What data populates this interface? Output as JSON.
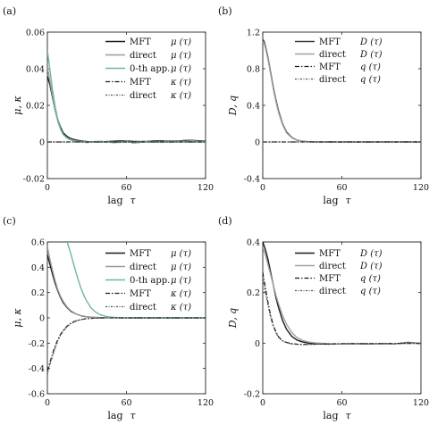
{
  "chart_data": [
    {
      "type": "line",
      "panel_label": "(a)",
      "xlabel_prefix": "lag",
      "xlabel_symbol": "τ",
      "ylabel": "μ, κ",
      "xlim": [
        0,
        120
      ],
      "ylim": [
        -0.02,
        0.06
      ],
      "xticks": [
        "0",
        "60",
        "120"
      ],
      "xtick_values": [
        0,
        60,
        120
      ],
      "yticks": [
        "-0.02",
        "0",
        "0.02",
        "0.04",
        "0.06"
      ],
      "ytick_values": [
        -0.02,
        0,
        0.02,
        0.04,
        0.06
      ],
      "grid": false,
      "legend_position": "top-right",
      "series": [
        {
          "label": "MFT",
          "quantity": "μ (τ)",
          "color": "#1a1a1a",
          "dash": "",
          "x": [
            0,
            2,
            4,
            6,
            8,
            10,
            12,
            15,
            18,
            22,
            26,
            30,
            35,
            40,
            45,
            50,
            55,
            60,
            65,
            70,
            75,
            80,
            85,
            90,
            95,
            100,
            105,
            110,
            115,
            120
          ],
          "y": [
            0.036,
            0.031,
            0.024,
            0.017,
            0.012,
            0.008,
            0.005,
            0.003,
            0.0018,
            0.001,
            0.0005,
            0.0002,
            0.0001,
            0.0,
            0.0002,
            0.0004,
            0.0006,
            0.0005,
            0.0003,
            0.0002,
            0.0003,
            0.0005,
            0.0006,
            0.0005,
            0.0004,
            0.0006,
            0.0008,
            0.0009,
            0.0006,
            0.0004
          ]
        },
        {
          "label": "direct",
          "quantity": "μ (τ)",
          "color": "#9a9a9a",
          "dash": "",
          "x": [
            0,
            2,
            4,
            6,
            8,
            10,
            12,
            15,
            18,
            22,
            26,
            30,
            35,
            40,
            45,
            50,
            55,
            60,
            65,
            70,
            75,
            80,
            85,
            90,
            95,
            100,
            105,
            110,
            115,
            120
          ],
          "y": [
            0.041,
            0.033,
            0.025,
            0.017,
            0.011,
            0.007,
            0.004,
            0.0022,
            0.0012,
            0.0006,
            0.0001,
            -0.0003,
            0.0002,
            0.0004,
            0.0001,
            -0.0004,
            -0.0002,
            0.0004,
            -0.0006,
            -0.0003,
            0.0003,
            0.0002,
            -0.0002,
            0.0003,
            0.0001,
            0.0004,
            0.0003,
            0.0007,
            0.0002,
            0.0001
          ]
        },
        {
          "label": "0-th app.",
          "quantity": "μ (τ)",
          "color": "#6fb5a3",
          "dash": "",
          "x": [
            0,
            2,
            4,
            6,
            8,
            10,
            12,
            15,
            18,
            22,
            26,
            30,
            40,
            60,
            90,
            120
          ],
          "y": [
            0.05,
            0.039,
            0.028,
            0.019,
            0.012,
            0.007,
            0.0042,
            0.002,
            0.001,
            0.0004,
            0.0002,
            0.0001,
            0.0,
            0.0,
            0.0,
            0.0
          ]
        },
        {
          "label": "MFT",
          "quantity": "κ (τ)",
          "color": "#1a1a1a",
          "dash": "5,2,1.5,2",
          "x": [
            0,
            10,
            20,
            40,
            60,
            80,
            100,
            120
          ],
          "y": [
            0.0,
            0.0,
            0.0,
            0.0,
            0.0,
            0.0,
            0.0,
            0.0
          ]
        },
        {
          "label": "direct",
          "quantity": "κ (τ)",
          "color": "#555555",
          "dash": "2,1.5,1,1.5",
          "x": [
            0,
            10,
            20,
            40,
            60,
            80,
            100,
            120
          ],
          "y": [
            0.0,
            0.0,
            0.0,
            0.0,
            0.0,
            0.0,
            0.0,
            0.0
          ]
        }
      ]
    },
    {
      "type": "line",
      "panel_label": "(b)",
      "xlabel_prefix": "lag",
      "xlabel_symbol": "τ",
      "ylabel": "D, q",
      "xlim": [
        0,
        120
      ],
      "ylim": [
        -0.4,
        1.2
      ],
      "xticks": [
        "0",
        "60",
        "120"
      ],
      "xtick_values": [
        0,
        60,
        120
      ],
      "yticks": [
        "-0.4",
        "0",
        "0.4",
        "0.8",
        "1.2"
      ],
      "ytick_values": [
        -0.4,
        0,
        0.4,
        0.8,
        1.2
      ],
      "grid": false,
      "legend_position": "top-right",
      "series": [
        {
          "label": "MFT",
          "quantity": "D (τ)",
          "color": "#3a3a3a",
          "dash": "",
          "x": [
            0,
            1,
            2,
            4,
            6,
            8,
            10,
            12,
            15,
            18,
            22,
            26,
            30,
            35,
            40,
            50,
            60,
            80,
            100,
            120
          ],
          "y": [
            1.12,
            1.1,
            1.05,
            0.92,
            0.76,
            0.6,
            0.46,
            0.34,
            0.2,
            0.11,
            0.05,
            0.02,
            0.008,
            0.003,
            0.001,
            0.0,
            0.0,
            0.0,
            0.0,
            0.0
          ]
        },
        {
          "label": "direct",
          "quantity": "D (τ)",
          "color": "#a0a0a0",
          "dash": "",
          "x": [
            0,
            1,
            2,
            4,
            6,
            8,
            10,
            12,
            15,
            18,
            22,
            26,
            30,
            35,
            40,
            50,
            60,
            80,
            100,
            120
          ],
          "y": [
            1.1,
            1.08,
            1.03,
            0.9,
            0.74,
            0.58,
            0.44,
            0.32,
            0.19,
            0.1,
            0.045,
            0.018,
            0.007,
            0.002,
            0.0,
            0.0,
            0.0,
            0.0,
            0.0,
            0.0
          ]
        },
        {
          "label": "MFT",
          "quantity": "q (τ)",
          "color": "#1a1a1a",
          "dash": "5,2,1.5,2",
          "x": [
            0,
            10,
            20,
            40,
            60,
            80,
            100,
            120
          ],
          "y": [
            0.0,
            0.0,
            0.0,
            0.0,
            0.0,
            0.0,
            0.0,
            0.0
          ]
        },
        {
          "label": "direct",
          "quantity": "q (τ)",
          "color": "#555555",
          "dash": "2,1.5,1,1.5",
          "x": [
            0,
            10,
            20,
            40,
            60,
            80,
            100,
            120
          ],
          "y": [
            0.0,
            0.0,
            0.0,
            0.0,
            0.0,
            0.0,
            0.0,
            0.0
          ]
        }
      ]
    },
    {
      "type": "line",
      "panel_label": "(c)",
      "xlabel_prefix": "lag",
      "xlabel_symbol": "τ",
      "ylabel": "μ, κ",
      "xlim": [
        0,
        120
      ],
      "ylim": [
        -0.6,
        0.6
      ],
      "xticks": [
        "0",
        "60",
        "120"
      ],
      "xtick_values": [
        0,
        60,
        120
      ],
      "yticks": [
        "-0.6",
        "-0.4",
        "-0.2",
        "0",
        "0.2",
        "0.4",
        "0.6"
      ],
      "ytick_values": [
        -0.6,
        -0.4,
        -0.2,
        0,
        0.2,
        0.4,
        0.6
      ],
      "grid": false,
      "legend_position": "top-right",
      "series": [
        {
          "label": "MFT",
          "quantity": "μ (τ)",
          "color": "#1a1a1a",
          "dash": "",
          "x": [
            0,
            2,
            4,
            6,
            8,
            10,
            12,
            15,
            18,
            22,
            26,
            30,
            35,
            40,
            50,
            60,
            80,
            100,
            120
          ],
          "y": [
            0.5,
            0.42,
            0.34,
            0.27,
            0.21,
            0.16,
            0.12,
            0.08,
            0.05,
            0.03,
            0.015,
            0.008,
            0.004,
            0.002,
            0.001,
            0.0,
            0.0,
            0.0,
            0.0
          ]
        },
        {
          "label": "direct",
          "quantity": "μ (τ)",
          "color": "#9a9a9a",
          "dash": "",
          "x": [
            0,
            2,
            4,
            6,
            8,
            10,
            12,
            15,
            18,
            22,
            26,
            30,
            35,
            40,
            50,
            60,
            80,
            100,
            120
          ],
          "y": [
            0.56,
            0.46,
            0.37,
            0.29,
            0.22,
            0.17,
            0.13,
            0.085,
            0.055,
            0.03,
            0.016,
            0.008,
            0.004,
            0.002,
            0.001,
            0.0,
            0.0,
            0.0,
            0.0
          ]
        },
        {
          "label": "0-th app.",
          "quantity": "μ (τ)",
          "color": "#6fb5a3",
          "dash": "",
          "x": [
            15,
            18,
            20,
            22,
            24,
            26,
            28,
            30,
            33,
            36,
            40,
            45,
            50,
            60,
            80,
            120
          ],
          "y": [
            0.6,
            0.5,
            0.42,
            0.35,
            0.28,
            0.22,
            0.17,
            0.13,
            0.08,
            0.05,
            0.025,
            0.01,
            0.004,
            0.001,
            0.0,
            0.0
          ]
        },
        {
          "label": "MFT",
          "quantity": "κ (τ)",
          "color": "#1a1a1a",
          "dash": "5,2,1.5,2",
          "x": [
            0,
            2,
            4,
            6,
            8,
            10,
            12,
            15,
            18,
            22,
            26,
            30,
            35,
            40,
            50,
            60,
            80,
            100,
            120
          ],
          "y": [
            -0.42,
            -0.35,
            -0.28,
            -0.22,
            -0.17,
            -0.13,
            -0.1,
            -0.065,
            -0.04,
            -0.022,
            -0.012,
            -0.006,
            -0.003,
            -0.001,
            0.0,
            0.0,
            0.0,
            0.0,
            0.0
          ]
        },
        {
          "label": "direct",
          "quantity": "κ (τ)",
          "color": "#555555",
          "dash": "2,1.5,1,1.5",
          "x": [
            0,
            2,
            4,
            6,
            8,
            10,
            12,
            15,
            18,
            22,
            26,
            30,
            35,
            40,
            50,
            60,
            80,
            100,
            120
          ],
          "y": [
            -0.45,
            -0.37,
            -0.3,
            -0.24,
            -0.18,
            -0.14,
            -0.105,
            -0.07,
            -0.045,
            -0.025,
            -0.013,
            -0.007,
            -0.003,
            -0.001,
            0.0,
            0.0,
            0.0,
            0.0,
            0.0
          ]
        }
      ]
    },
    {
      "type": "line",
      "panel_label": "(d)",
      "xlabel_prefix": "lag",
      "xlabel_symbol": "τ",
      "ylabel": "D, q",
      "xlim": [
        0,
        120
      ],
      "ylim": [
        -0.2,
        0.4
      ],
      "xticks": [
        "0",
        "60",
        "120"
      ],
      "xtick_values": [
        0,
        60,
        120
      ],
      "yticks": [
        "-0.2",
        "0",
        "0.2",
        "0.4"
      ],
      "ytick_values": [
        -0.2,
        0,
        0.2,
        0.4
      ],
      "grid": false,
      "legend_position": "top-right",
      "series": [
        {
          "label": "MFT",
          "quantity": "D (τ)",
          "color": "#1a1a1a",
          "dash": "",
          "x": [
            0,
            2,
            4,
            6,
            8,
            10,
            12,
            15,
            18,
            22,
            26,
            30,
            35,
            40,
            50,
            60,
            70,
            80,
            90,
            100,
            110,
            120
          ],
          "y": [
            0.4,
            0.37,
            0.33,
            0.28,
            0.23,
            0.18,
            0.14,
            0.09,
            0.055,
            0.027,
            0.012,
            0.005,
            0.0,
            -0.003,
            -0.004,
            -0.003,
            -0.002,
            -0.003,
            -0.002,
            -0.003,
            0.003,
            -0.001
          ]
        },
        {
          "label": "direct",
          "quantity": "D (τ)",
          "color": "#a0a0a0",
          "dash": "",
          "x": [
            0,
            2,
            4,
            6,
            8,
            10,
            12,
            15,
            18,
            22,
            26,
            30,
            35,
            40,
            50,
            60,
            70,
            80,
            90,
            100,
            110,
            120
          ],
          "y": [
            0.38,
            0.35,
            0.31,
            0.27,
            0.23,
            0.19,
            0.155,
            0.11,
            0.075,
            0.042,
            0.022,
            0.011,
            0.004,
            0.001,
            -0.002,
            -0.003,
            -0.002,
            -0.002,
            -0.002,
            -0.002,
            0.001,
            -0.001
          ]
        },
        {
          "label": "MFT",
          "quantity": "q (τ)",
          "color": "#1a1a1a",
          "dash": "5,2,1.5,2",
          "x": [
            0,
            2,
            4,
            6,
            8,
            10,
            12,
            15,
            18,
            22,
            26,
            30,
            35,
            40,
            50,
            60,
            80,
            100,
            120
          ],
          "y": [
            0.28,
            0.22,
            0.16,
            0.11,
            0.07,
            0.045,
            0.025,
            0.01,
            0.003,
            -0.002,
            -0.004,
            -0.005,
            -0.005,
            -0.004,
            -0.003,
            -0.002,
            -0.002,
            -0.001,
            -0.001
          ]
        },
        {
          "label": "direct",
          "quantity": "q (τ)",
          "color": "#555555",
          "dash": "2,1.5,1,1.5",
          "x": [
            0,
            2,
            4,
            6,
            8,
            10,
            12,
            15,
            18,
            22,
            26,
            30,
            35,
            40,
            50,
            60,
            80,
            100,
            120
          ],
          "y": [
            0.26,
            0.2,
            0.15,
            0.1,
            0.065,
            0.04,
            0.022,
            0.008,
            0.002,
            -0.003,
            -0.005,
            -0.006,
            -0.005,
            -0.004,
            -0.003,
            -0.002,
            -0.002,
            -0.001,
            -0.001
          ]
        }
      ]
    }
  ]
}
